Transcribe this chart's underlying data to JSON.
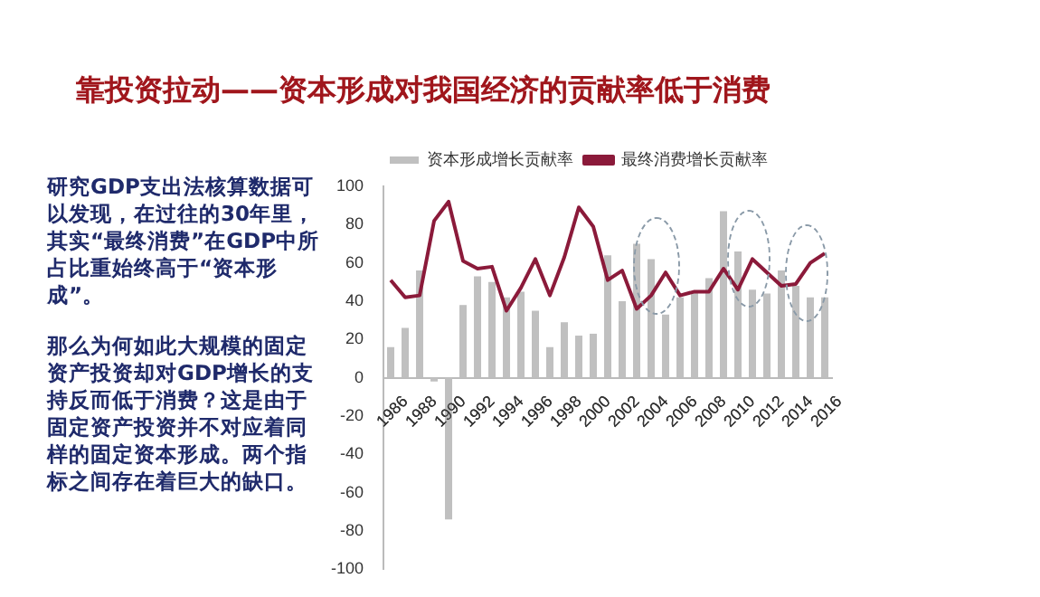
{
  "chart_data": {
    "type": "bar",
    "title": "靠投资拉动——资本形成对我国经济的贡献率低于消费",
    "annotations": [
      "研究GDP支出法核算数据可以发现，在过往的30年里，其实“最终消费”在GDP中所占比重始终高于“资本形成”。",
      "那么为何如此大规模的固定资产投资却对GDP增长的支持反而低于消费？这是由于固定资产投资并不对应着同样的固定资本形成。两个指标之间存在着巨大的缺口。"
    ],
    "categories": [
      "1986",
      null,
      "1988",
      null,
      "1990",
      null,
      "1992",
      null,
      "1994",
      null,
      "1996",
      null,
      "1998",
      null,
      "2000",
      null,
      "2002",
      null,
      "2004",
      null,
      "2006",
      null,
      "2008",
      null,
      "2010",
      null,
      "2012",
      null,
      "2014",
      null,
      "2016"
    ],
    "series": [
      {
        "name": "资本形成增长贡献率",
        "type": "bar",
        "color": "#c0c0c0",
        "values": [
          16,
          26,
          56,
          -2,
          -74,
          38,
          53,
          50,
          42,
          45,
          35,
          16,
          29,
          22,
          23,
          64,
          40,
          70,
          62,
          33,
          42,
          45,
          52,
          87,
          66,
          46,
          44,
          56,
          48,
          42,
          42
        ]
      },
      {
        "name": "最终消费增长贡献率",
        "type": "line",
        "color": "#8b1a3a",
        "values": [
          51,
          42,
          43,
          82,
          92,
          61,
          57,
          58,
          35,
          47,
          62,
          43,
          63,
          89,
          79,
          51,
          56,
          36,
          43,
          55,
          43,
          45,
          45,
          57,
          46,
          62,
          55,
          48,
          49,
          60,
          65
        ]
      }
    ],
    "ylim": [
      -100,
      100
    ],
    "yticks": [
      -100,
      -80,
      -60,
      -40,
      -20,
      0,
      20,
      40,
      60,
      80,
      100
    ],
    "grid": false,
    "legend": "top",
    "marker": "none"
  }
}
